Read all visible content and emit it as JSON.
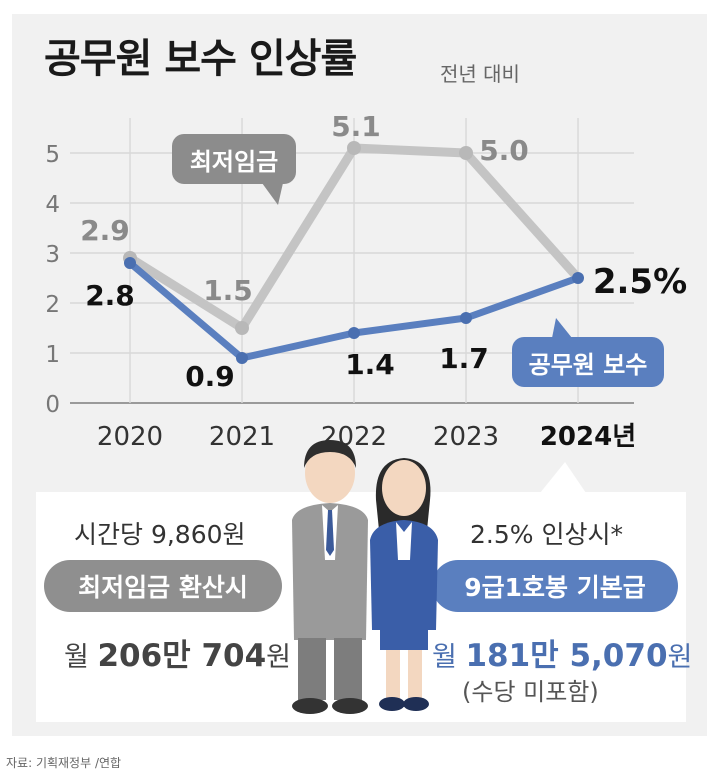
{
  "header": {
    "title": "공무원 보수 인상률",
    "subtitle": "전년 대비"
  },
  "chart_data": {
    "type": "line",
    "categories": [
      "2020",
      "2021",
      "2022",
      "2023",
      "2024년"
    ],
    "series": [
      {
        "name": "최저임금",
        "values": [
          2.9,
          1.5,
          5.1,
          5.0,
          null
        ],
        "color": "#c4c4c4"
      },
      {
        "name": "공무원 보수",
        "values": [
          2.8,
          0.9,
          1.4,
          1.7,
          2.5
        ],
        "color": "#5a7fbf"
      }
    ],
    "data_labels": {
      "minwage": [
        "2.9",
        "1.5",
        "5.1",
        "5.0"
      ],
      "civil": [
        "2.8",
        "0.9",
        "1.4",
        "1.7",
        "2.5%"
      ]
    },
    "yticks": [
      "0",
      "1",
      "2",
      "3",
      "4",
      "5"
    ],
    "ylim": [
      0,
      5.5
    ],
    "grid": true
  },
  "panel": {
    "left": {
      "hourly": "시간당 9,860원",
      "pill": "최저임금 환산시",
      "amount_prefix": "월 ",
      "amount_value": "206만 704",
      "amount_suffix": "원"
    },
    "right": {
      "condition": "2.5% 인상시*",
      "pill": "9급1호봉 기본급",
      "amount_prefix": "월 ",
      "amount_value": "181만 5,070",
      "amount_suffix": "원",
      "note": "(수당 미포함)"
    }
  },
  "source": "자료: 기획재정부 /연합"
}
